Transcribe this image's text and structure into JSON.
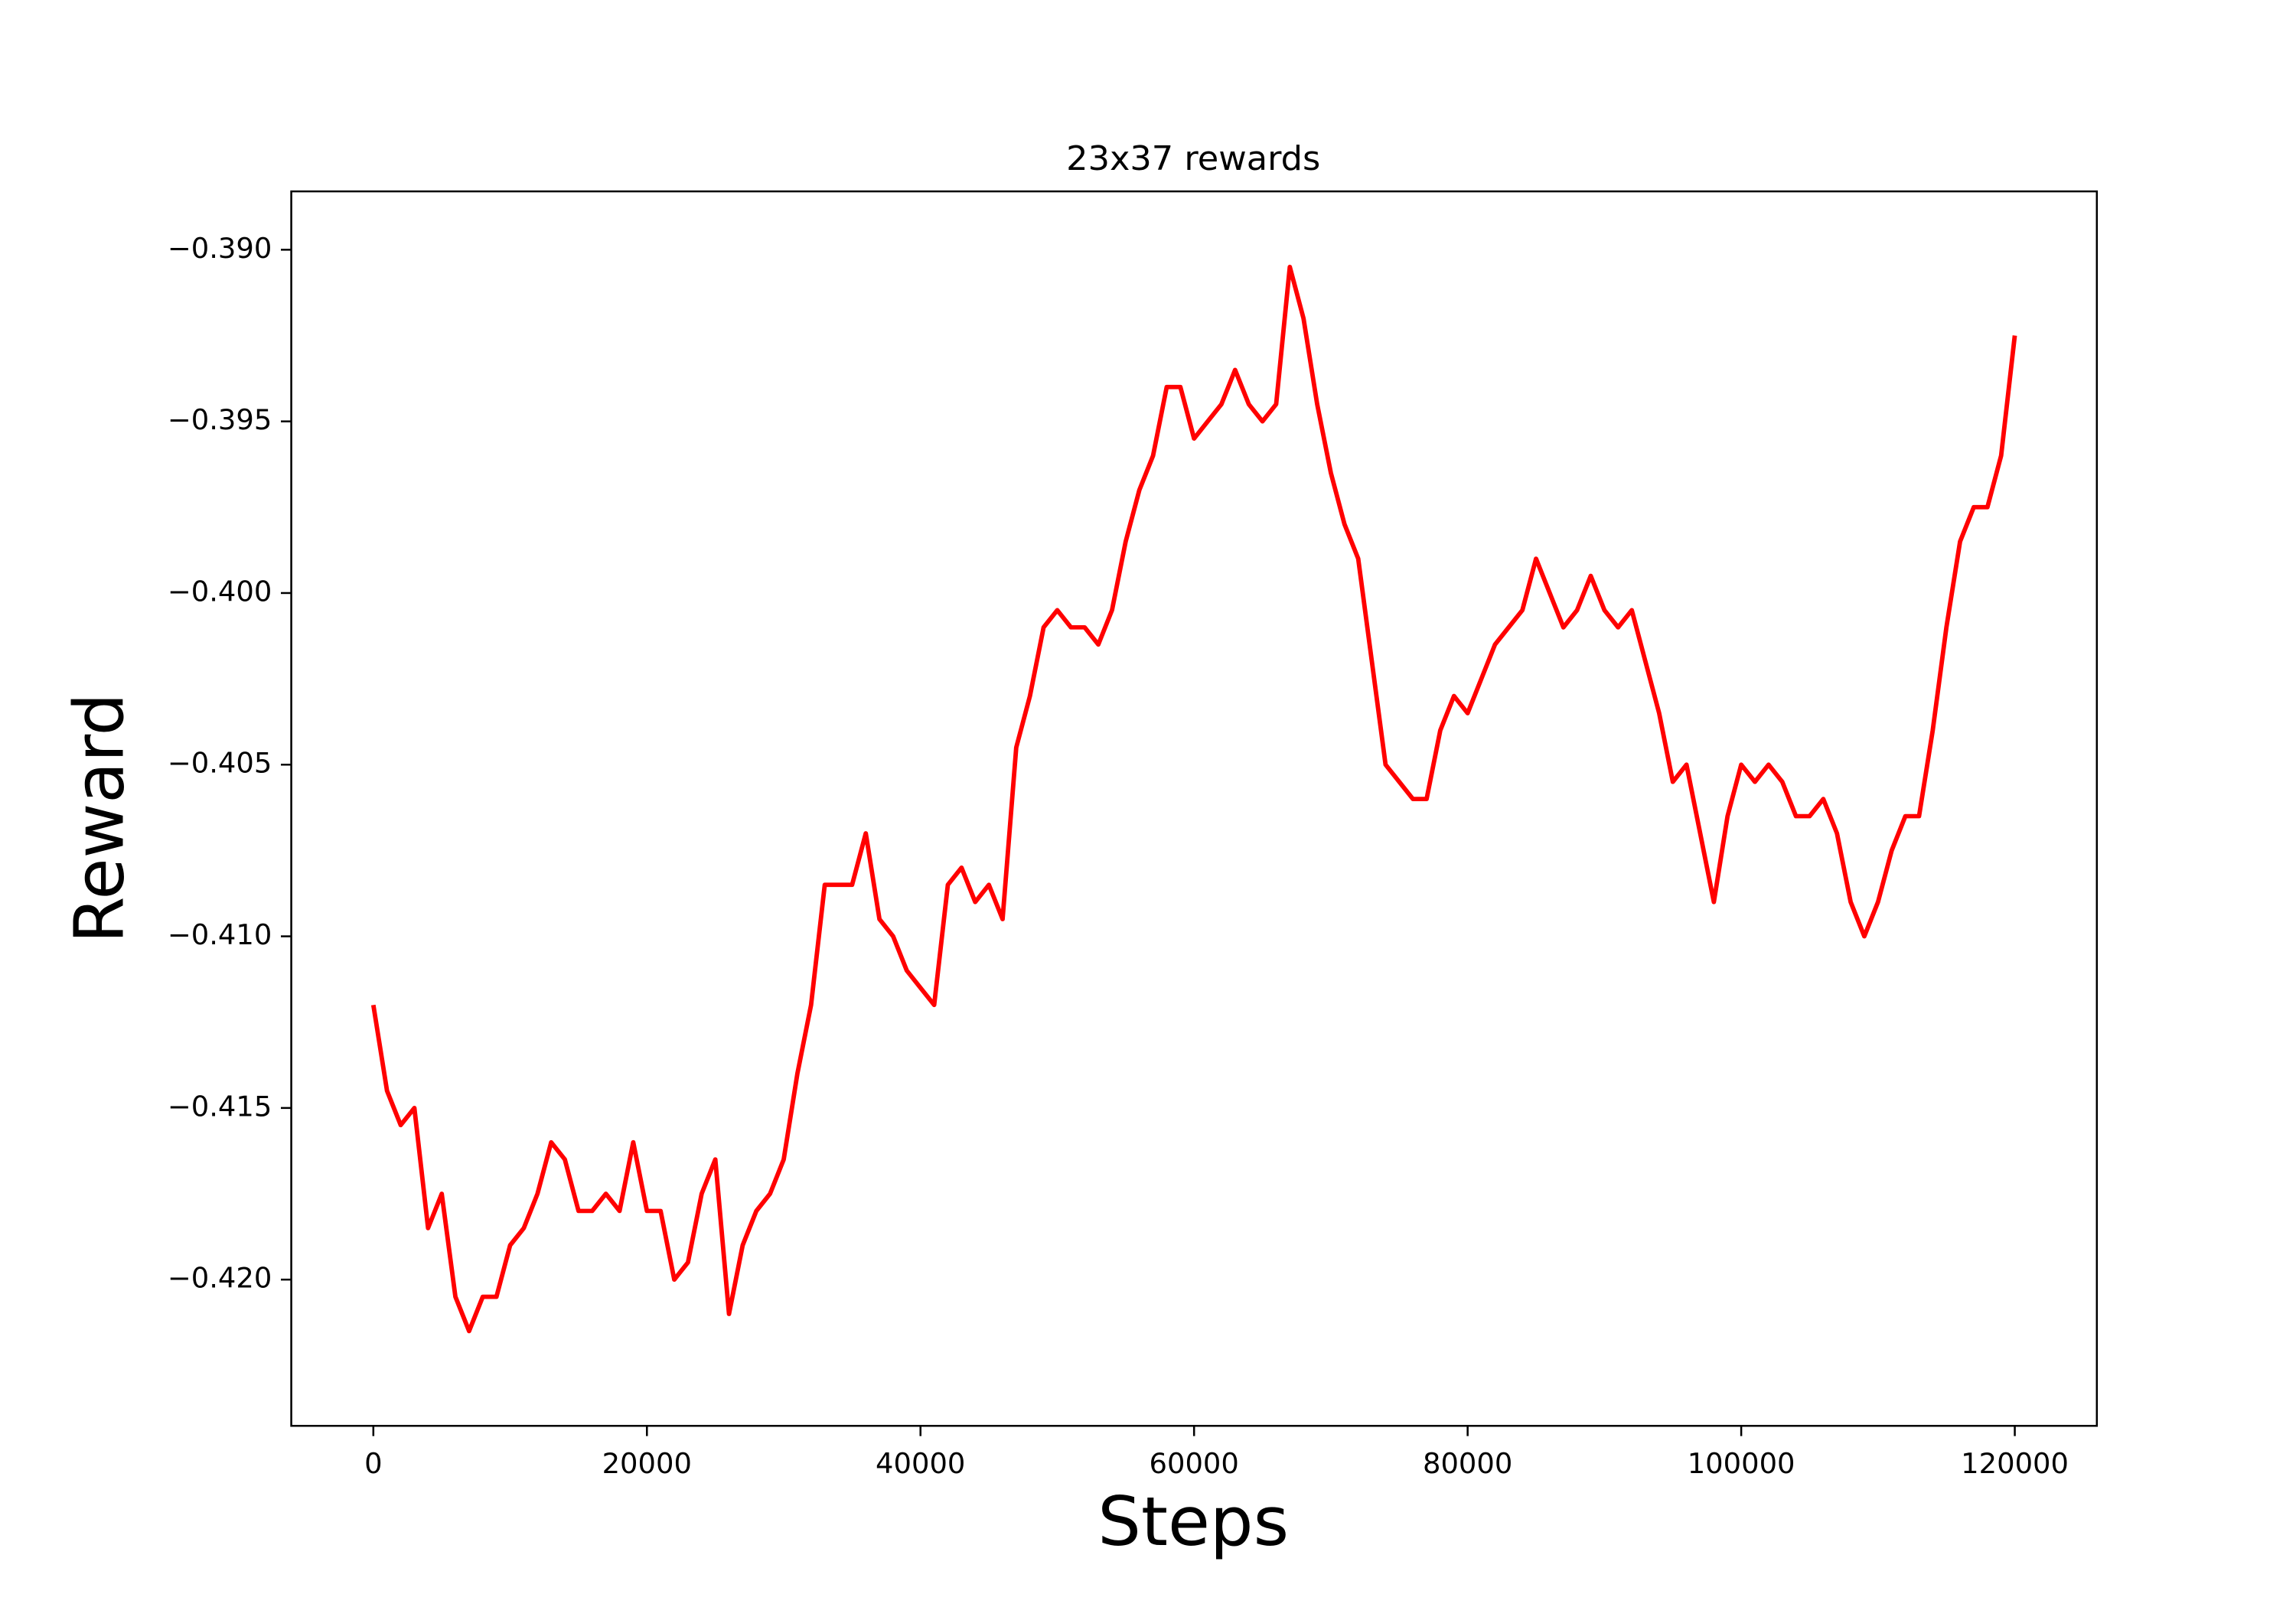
{
  "chart_data": {
    "type": "line",
    "title": "23x37 rewards",
    "x_label": "Steps",
    "y_label": "Reward",
    "color": "#ff0000",
    "x": [
      0,
      1000,
      2000,
      3000,
      4000,
      5000,
      6000,
      7000,
      8000,
      9000,
      10000,
      11000,
      12000,
      13000,
      14000,
      15000,
      16000,
      17000,
      18000,
      19000,
      20000,
      21000,
      22000,
      23000,
      24000,
      25000,
      26000,
      27000,
      28000,
      29000,
      30000,
      31000,
      32000,
      33000,
      34000,
      35000,
      36000,
      37000,
      38000,
      39000,
      40000,
      41000,
      42000,
      43000,
      44000,
      45000,
      46000,
      47000,
      48000,
      49000,
      50000,
      51000,
      52000,
      53000,
      54000,
      55000,
      56000,
      57000,
      58000,
      59000,
      60000,
      61000,
      62000,
      63000,
      64000,
      65000,
      66000,
      67000,
      68000,
      69000,
      70000,
      71000,
      72000,
      73000,
      74000,
      75000,
      76000,
      77000,
      78000,
      79000,
      80000,
      81000,
      82000,
      83000,
      84000,
      85000,
      86000,
      87000,
      88000,
      89000,
      90000,
      91000,
      92000,
      93000,
      94000,
      95000,
      96000,
      97000,
      98000,
      99000,
      100000,
      101000,
      102000,
      103000,
      104000,
      105000,
      106000,
      107000,
      108000,
      109000,
      110000,
      111000,
      112000,
      113000,
      114000,
      115000,
      116000,
      117000,
      118000,
      119000,
      120000
    ],
    "values": [
      -0.412,
      -0.4145,
      -0.4155,
      -0.415,
      -0.4185,
      -0.4175,
      -0.4205,
      -0.4215,
      -0.4205,
      -0.4205,
      -0.419,
      -0.4185,
      -0.4175,
      -0.416,
      -0.4165,
      -0.418,
      -0.418,
      -0.4175,
      -0.418,
      -0.416,
      -0.418,
      -0.418,
      -0.42,
      -0.4195,
      -0.4175,
      -0.4165,
      -0.421,
      -0.419,
      -0.418,
      -0.4175,
      -0.4165,
      -0.414,
      -0.412,
      -0.4085,
      -0.4085,
      -0.4085,
      -0.407,
      -0.4095,
      -0.41,
      -0.411,
      -0.4115,
      -0.412,
      -0.4085,
      -0.408,
      -0.409,
      -0.4085,
      -0.4095,
      -0.4045,
      -0.403,
      -0.401,
      -0.4005,
      -0.401,
      -0.401,
      -0.4015,
      -0.4005,
      -0.3985,
      -0.397,
      -0.396,
      -0.394,
      -0.394,
      -0.3955,
      -0.395,
      -0.3945,
      -0.3935,
      -0.3945,
      -0.395,
      -0.3945,
      -0.3905,
      -0.392,
      -0.3945,
      -0.3965,
      -0.398,
      -0.399,
      -0.402,
      -0.405,
      -0.4055,
      -0.406,
      -0.406,
      -0.404,
      -0.403,
      -0.4035,
      -0.4025,
      -0.4015,
      -0.401,
      -0.4005,
      -0.399,
      -0.4,
      -0.401,
      -0.4005,
      -0.3995,
      -0.4005,
      -0.401,
      -0.4005,
      -0.402,
      -0.4035,
      -0.4055,
      -0.405,
      -0.407,
      -0.409,
      -0.4065,
      -0.405,
      -0.4055,
      -0.405,
      -0.4055,
      -0.4065,
      -0.4065,
      -0.406,
      -0.407,
      -0.409,
      -0.41,
      -0.409,
      -0.4075,
      -0.4065,
      -0.4065,
      -0.404,
      -0.401,
      -0.3985,
      -0.3975,
      -0.3975,
      -0.396,
      -0.3925
    ],
    "xlim": [
      -6000,
      126000
    ],
    "xticks": [
      0,
      20000,
      40000,
      60000,
      80000,
      100000,
      120000
    ],
    "ylim": [
      -0.42426,
      -0.3883
    ],
    "yticks": [
      {
        "value": -0.42,
        "label": "−0.420"
      },
      {
        "value": -0.415,
        "label": "−0.415"
      },
      {
        "value": -0.41,
        "label": "−0.410"
      },
      {
        "value": -0.405,
        "label": "−0.405"
      },
      {
        "value": -0.4,
        "label": "−0.400"
      },
      {
        "value": -0.395,
        "label": "−0.395"
      },
      {
        "value": -0.39,
        "label": "−0.390"
      }
    ]
  }
}
